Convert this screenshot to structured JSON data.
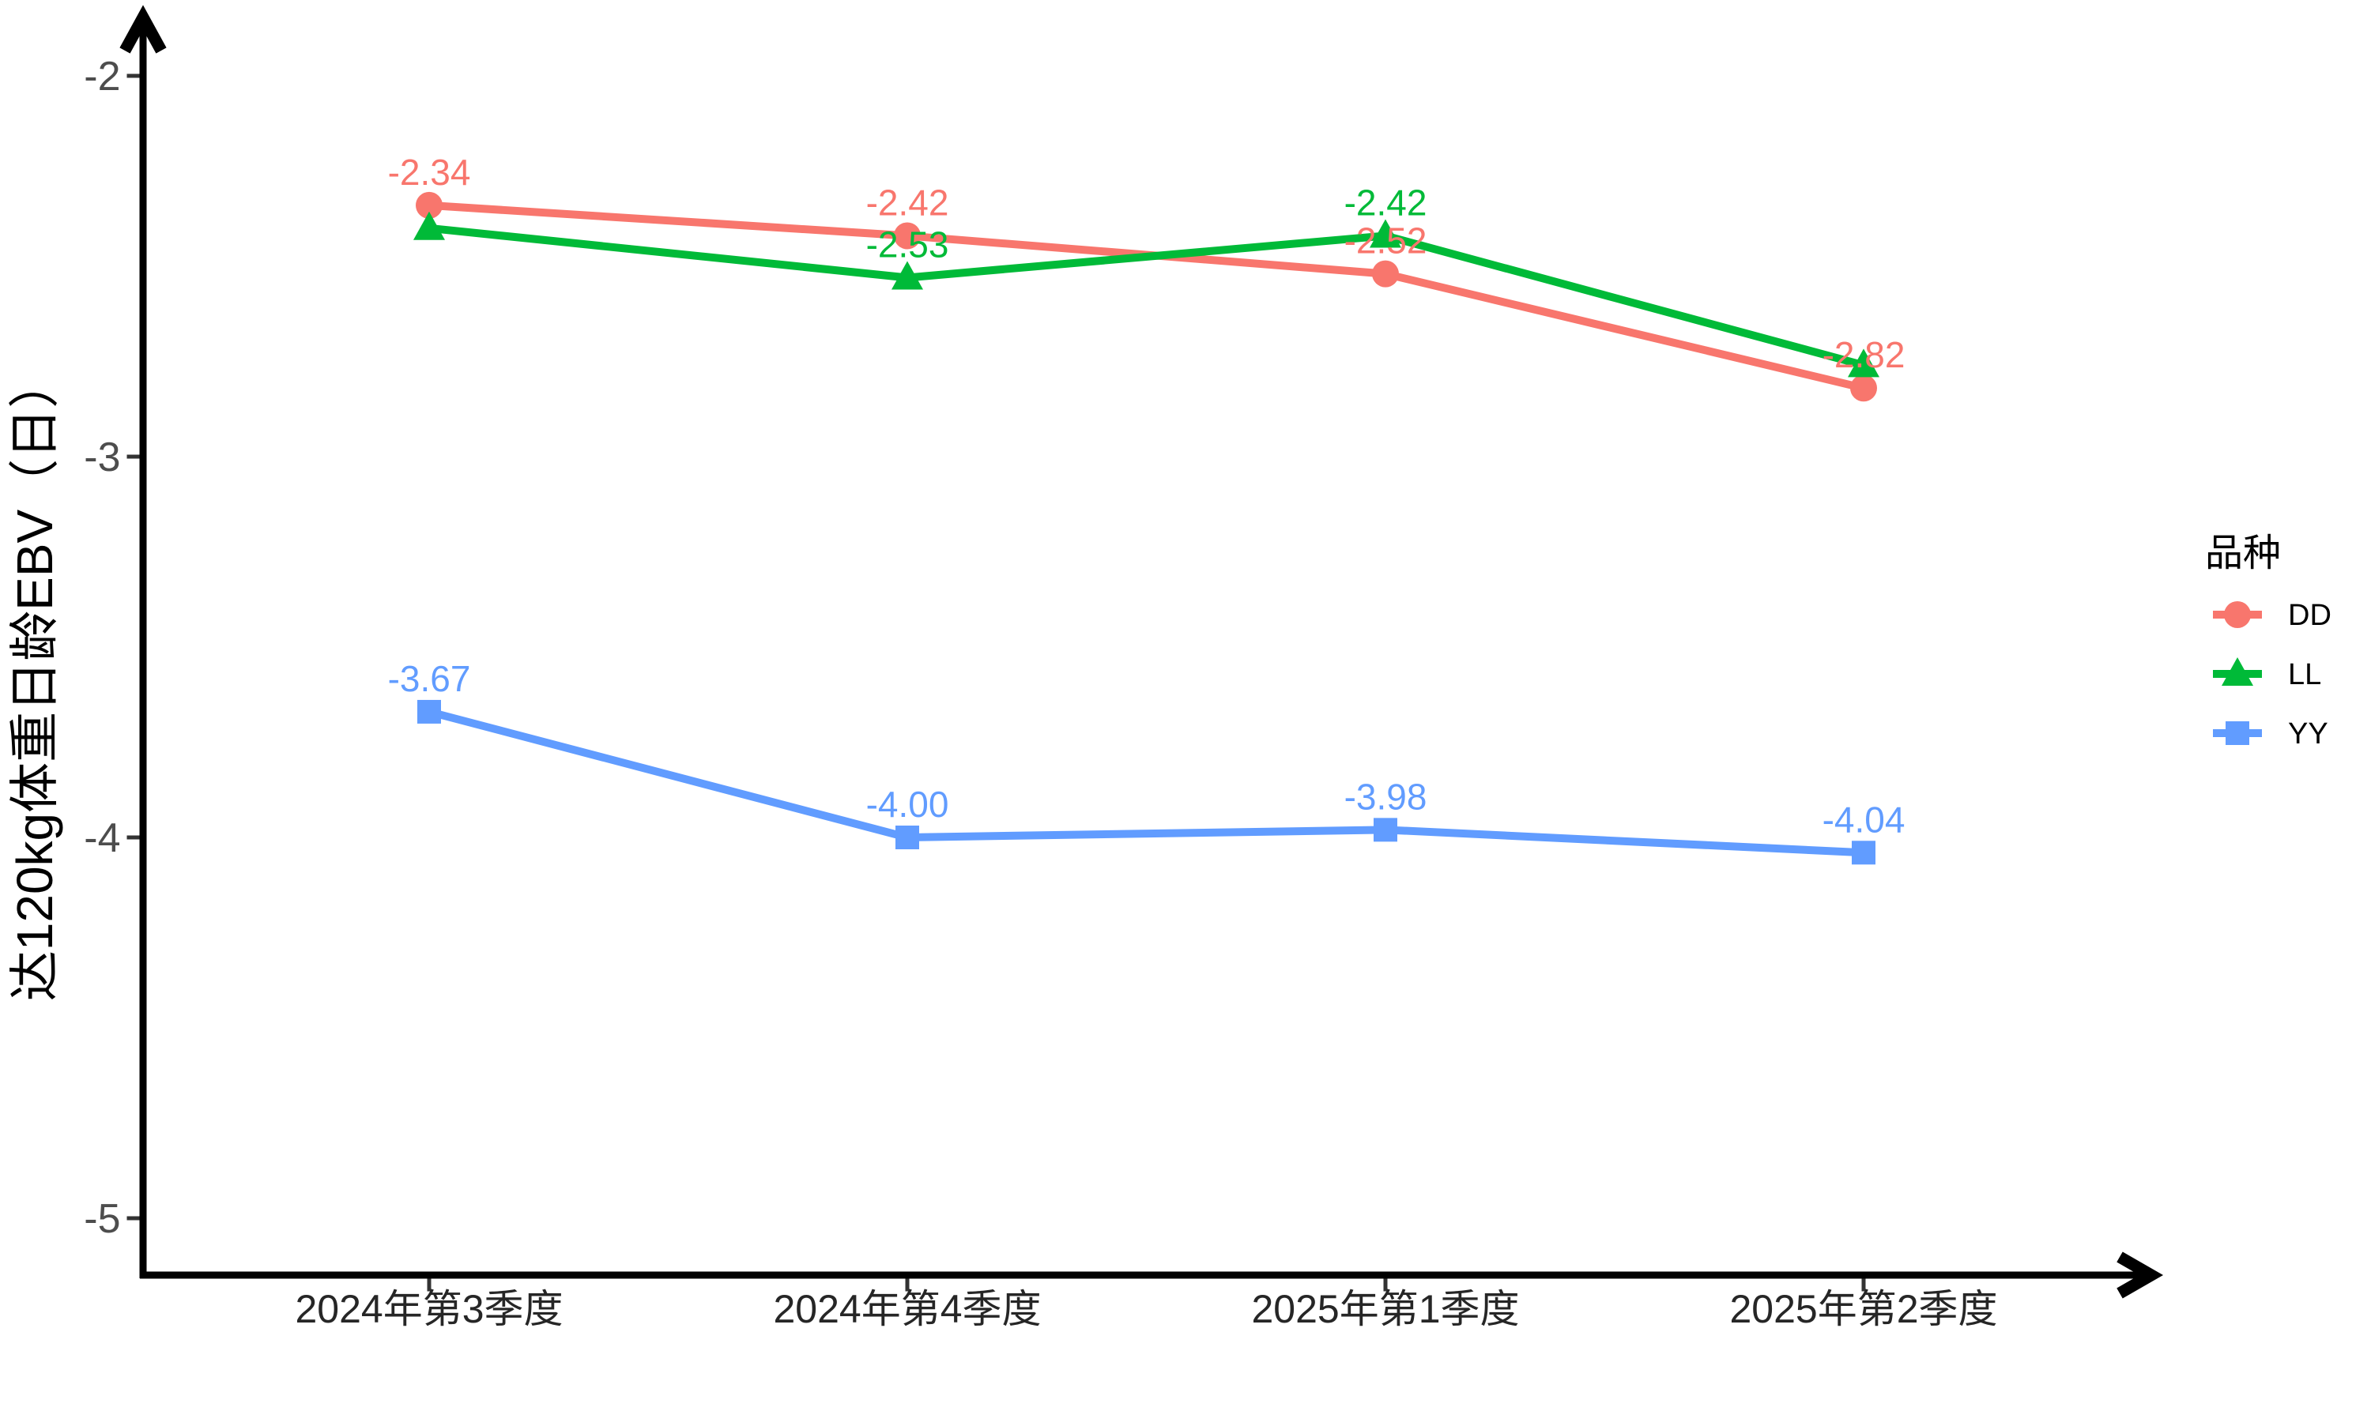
{
  "chart_data": {
    "type": "line",
    "title": "",
    "xlabel": "",
    "ylabel": "达120kg体重日龄EBV（日）",
    "categories": [
      "2024年第3季度",
      "2024年第4季度",
      "2025年第1季度",
      "2025年第2季度"
    ],
    "y_ticks": [
      "-2",
      "-3",
      "-4",
      "-5"
    ],
    "ylim": [
      -5.2,
      -1.75
    ],
    "grid": "off",
    "legend": {
      "title": "品种",
      "position": "right",
      "entries": [
        "DD",
        "LL",
        "YY"
      ]
    },
    "series": [
      {
        "name": "DD",
        "color": "#F8766D",
        "marker": "circle",
        "values": [
          -2.34,
          -2.42,
          -2.52,
          -2.82
        ],
        "point_labels": [
          "-2.34",
          "-2.42",
          "-2.52",
          "-2.82"
        ]
      },
      {
        "name": "LL",
        "color": "#00BA38",
        "marker": "triangle",
        "values": [
          -2.4,
          -2.53,
          -2.42,
          -2.76
        ],
        "point_labels": [
          null,
          "-2.53",
          "-2.42",
          null
        ]
      },
      {
        "name": "YY",
        "color": "#619CFF",
        "marker": "square",
        "values": [
          -3.67,
          -4.0,
          -3.98,
          -4.04
        ],
        "point_labels": [
          "-3.67",
          "-4.00",
          "-3.98",
          "-4.04"
        ]
      }
    ],
    "axis_text_color_y": "#4d4d4d",
    "axis_text_color_x": "#262626",
    "axis_line_color": "#000000"
  }
}
